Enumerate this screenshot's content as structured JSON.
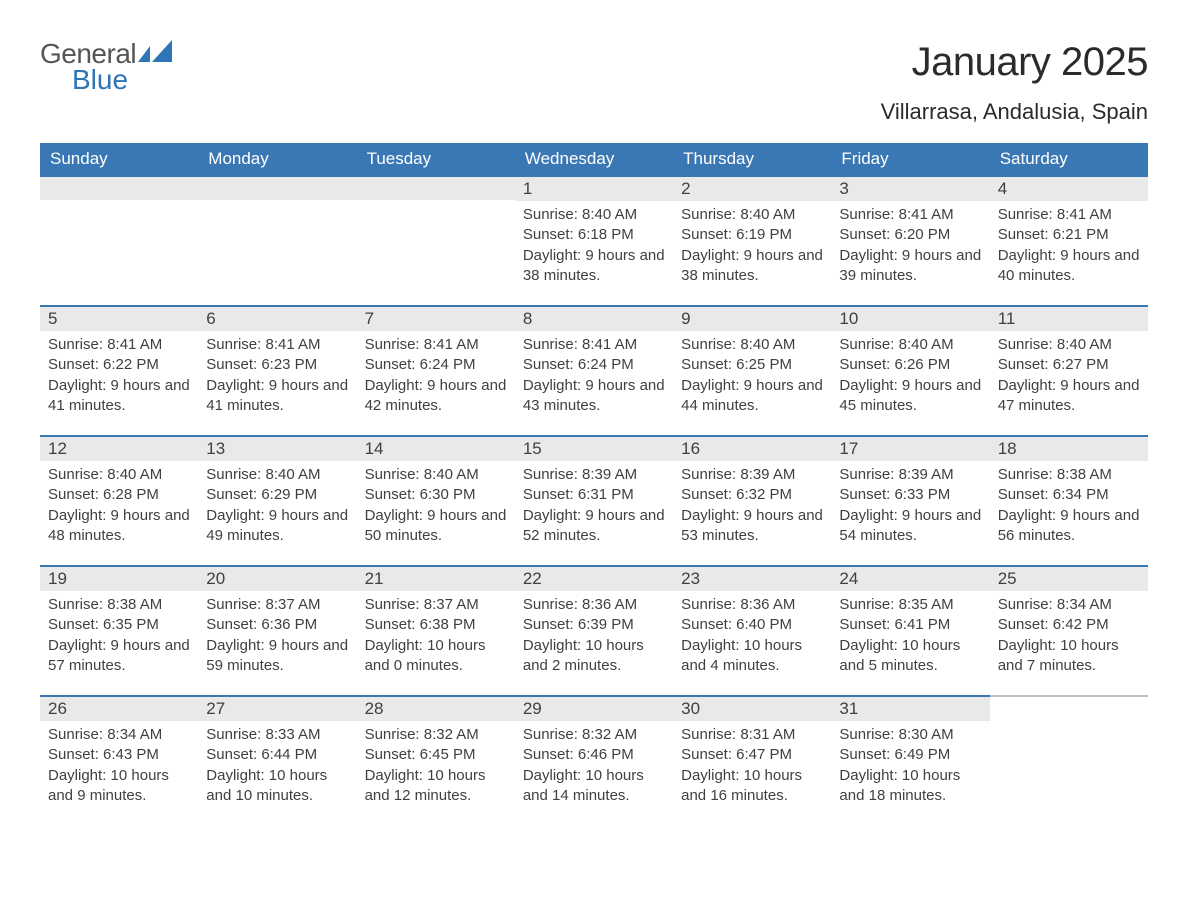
{
  "brand": {
    "word1": "General",
    "word2": "Blue",
    "logo_color": "#2e75b6",
    "text_color": "#555555"
  },
  "title": "January 2025",
  "location": "Villarrasa, Andalusia, Spain",
  "colors": {
    "header_bg": "#3a78b5",
    "header_text": "#ffffff",
    "daynum_bg": "#e9e9e9",
    "daynum_border": "#3a78b5",
    "trailing_border": "#bfbfbf",
    "body_text": "#404040",
    "page_bg": "#ffffff"
  },
  "fonts": {
    "title_size_pt": 30,
    "location_size_pt": 16,
    "weekday_size_pt": 13,
    "daynum_size_pt": 13,
    "content_size_pt": 11
  },
  "weekdays": [
    "Sunday",
    "Monday",
    "Tuesday",
    "Wednesday",
    "Thursday",
    "Friday",
    "Saturday"
  ],
  "weeks": [
    [
      {
        "empty": true
      },
      {
        "empty": true
      },
      {
        "empty": true
      },
      {
        "day": "1",
        "sunrise": "Sunrise: 8:40 AM",
        "sunset": "Sunset: 6:18 PM",
        "daylight": "Daylight: 9 hours and 38 minutes."
      },
      {
        "day": "2",
        "sunrise": "Sunrise: 8:40 AM",
        "sunset": "Sunset: 6:19 PM",
        "daylight": "Daylight: 9 hours and 38 minutes."
      },
      {
        "day": "3",
        "sunrise": "Sunrise: 8:41 AM",
        "sunset": "Sunset: 6:20 PM",
        "daylight": "Daylight: 9 hours and 39 minutes."
      },
      {
        "day": "4",
        "sunrise": "Sunrise: 8:41 AM",
        "sunset": "Sunset: 6:21 PM",
        "daylight": "Daylight: 9 hours and 40 minutes."
      }
    ],
    [
      {
        "day": "5",
        "sunrise": "Sunrise: 8:41 AM",
        "sunset": "Sunset: 6:22 PM",
        "daylight": "Daylight: 9 hours and 41 minutes."
      },
      {
        "day": "6",
        "sunrise": "Sunrise: 8:41 AM",
        "sunset": "Sunset: 6:23 PM",
        "daylight": "Daylight: 9 hours and 41 minutes."
      },
      {
        "day": "7",
        "sunrise": "Sunrise: 8:41 AM",
        "sunset": "Sunset: 6:24 PM",
        "daylight": "Daylight: 9 hours and 42 minutes."
      },
      {
        "day": "8",
        "sunrise": "Sunrise: 8:41 AM",
        "sunset": "Sunset: 6:24 PM",
        "daylight": "Daylight: 9 hours and 43 minutes."
      },
      {
        "day": "9",
        "sunrise": "Sunrise: 8:40 AM",
        "sunset": "Sunset: 6:25 PM",
        "daylight": "Daylight: 9 hours and 44 minutes."
      },
      {
        "day": "10",
        "sunrise": "Sunrise: 8:40 AM",
        "sunset": "Sunset: 6:26 PM",
        "daylight": "Daylight: 9 hours and 45 minutes."
      },
      {
        "day": "11",
        "sunrise": "Sunrise: 8:40 AM",
        "sunset": "Sunset: 6:27 PM",
        "daylight": "Daylight: 9 hours and 47 minutes."
      }
    ],
    [
      {
        "day": "12",
        "sunrise": "Sunrise: 8:40 AM",
        "sunset": "Sunset: 6:28 PM",
        "daylight": "Daylight: 9 hours and 48 minutes."
      },
      {
        "day": "13",
        "sunrise": "Sunrise: 8:40 AM",
        "sunset": "Sunset: 6:29 PM",
        "daylight": "Daylight: 9 hours and 49 minutes."
      },
      {
        "day": "14",
        "sunrise": "Sunrise: 8:40 AM",
        "sunset": "Sunset: 6:30 PM",
        "daylight": "Daylight: 9 hours and 50 minutes."
      },
      {
        "day": "15",
        "sunrise": "Sunrise: 8:39 AM",
        "sunset": "Sunset: 6:31 PM",
        "daylight": "Daylight: 9 hours and 52 minutes."
      },
      {
        "day": "16",
        "sunrise": "Sunrise: 8:39 AM",
        "sunset": "Sunset: 6:32 PM",
        "daylight": "Daylight: 9 hours and 53 minutes."
      },
      {
        "day": "17",
        "sunrise": "Sunrise: 8:39 AM",
        "sunset": "Sunset: 6:33 PM",
        "daylight": "Daylight: 9 hours and 54 minutes."
      },
      {
        "day": "18",
        "sunrise": "Sunrise: 8:38 AM",
        "sunset": "Sunset: 6:34 PM",
        "daylight": "Daylight: 9 hours and 56 minutes."
      }
    ],
    [
      {
        "day": "19",
        "sunrise": "Sunrise: 8:38 AM",
        "sunset": "Sunset: 6:35 PM",
        "daylight": "Daylight: 9 hours and 57 minutes."
      },
      {
        "day": "20",
        "sunrise": "Sunrise: 8:37 AM",
        "sunset": "Sunset: 6:36 PM",
        "daylight": "Daylight: 9 hours and 59 minutes."
      },
      {
        "day": "21",
        "sunrise": "Sunrise: 8:37 AM",
        "sunset": "Sunset: 6:38 PM",
        "daylight": "Daylight: 10 hours and 0 minutes."
      },
      {
        "day": "22",
        "sunrise": "Sunrise: 8:36 AM",
        "sunset": "Sunset: 6:39 PM",
        "daylight": "Daylight: 10 hours and 2 minutes."
      },
      {
        "day": "23",
        "sunrise": "Sunrise: 8:36 AM",
        "sunset": "Sunset: 6:40 PM",
        "daylight": "Daylight: 10 hours and 4 minutes."
      },
      {
        "day": "24",
        "sunrise": "Sunrise: 8:35 AM",
        "sunset": "Sunset: 6:41 PM",
        "daylight": "Daylight: 10 hours and 5 minutes."
      },
      {
        "day": "25",
        "sunrise": "Sunrise: 8:34 AM",
        "sunset": "Sunset: 6:42 PM",
        "daylight": "Daylight: 10 hours and 7 minutes."
      }
    ],
    [
      {
        "day": "26",
        "sunrise": "Sunrise: 8:34 AM",
        "sunset": "Sunset: 6:43 PM",
        "daylight": "Daylight: 10 hours and 9 minutes."
      },
      {
        "day": "27",
        "sunrise": "Sunrise: 8:33 AM",
        "sunset": "Sunset: 6:44 PM",
        "daylight": "Daylight: 10 hours and 10 minutes."
      },
      {
        "day": "28",
        "sunrise": "Sunrise: 8:32 AM",
        "sunset": "Sunset: 6:45 PM",
        "daylight": "Daylight: 10 hours and 12 minutes."
      },
      {
        "day": "29",
        "sunrise": "Sunrise: 8:32 AM",
        "sunset": "Sunset: 6:46 PM",
        "daylight": "Daylight: 10 hours and 14 minutes."
      },
      {
        "day": "30",
        "sunrise": "Sunrise: 8:31 AM",
        "sunset": "Sunset: 6:47 PM",
        "daylight": "Daylight: 10 hours and 16 minutes."
      },
      {
        "day": "31",
        "sunrise": "Sunrise: 8:30 AM",
        "sunset": "Sunset: 6:49 PM",
        "daylight": "Daylight: 10 hours and 18 minutes."
      },
      {
        "empty": true,
        "trailing": true
      }
    ]
  ]
}
